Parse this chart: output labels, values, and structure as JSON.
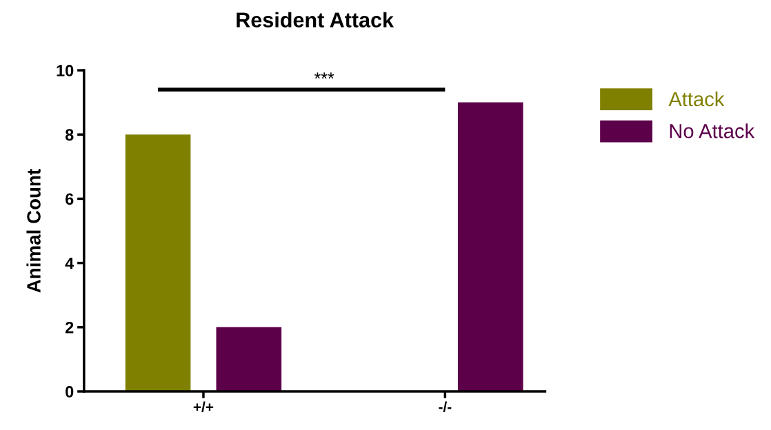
{
  "chart_data": {
    "type": "bar",
    "title": "Resident Attack",
    "ylabel": "Animal Count",
    "categories": [
      "+/+",
      "-/-"
    ],
    "series": [
      {
        "name": "Attack",
        "color": "#808000",
        "values": [
          8,
          0
        ]
      },
      {
        "name": "No Attack",
        "color": "#5c004a",
        "values": [
          2,
          9
        ]
      }
    ],
    "ylim": [
      0,
      10
    ],
    "yticks": [
      0,
      2,
      4,
      6,
      8,
      10
    ],
    "grid": false,
    "legend": "top right",
    "annotations": [
      "***"
    ]
  }
}
